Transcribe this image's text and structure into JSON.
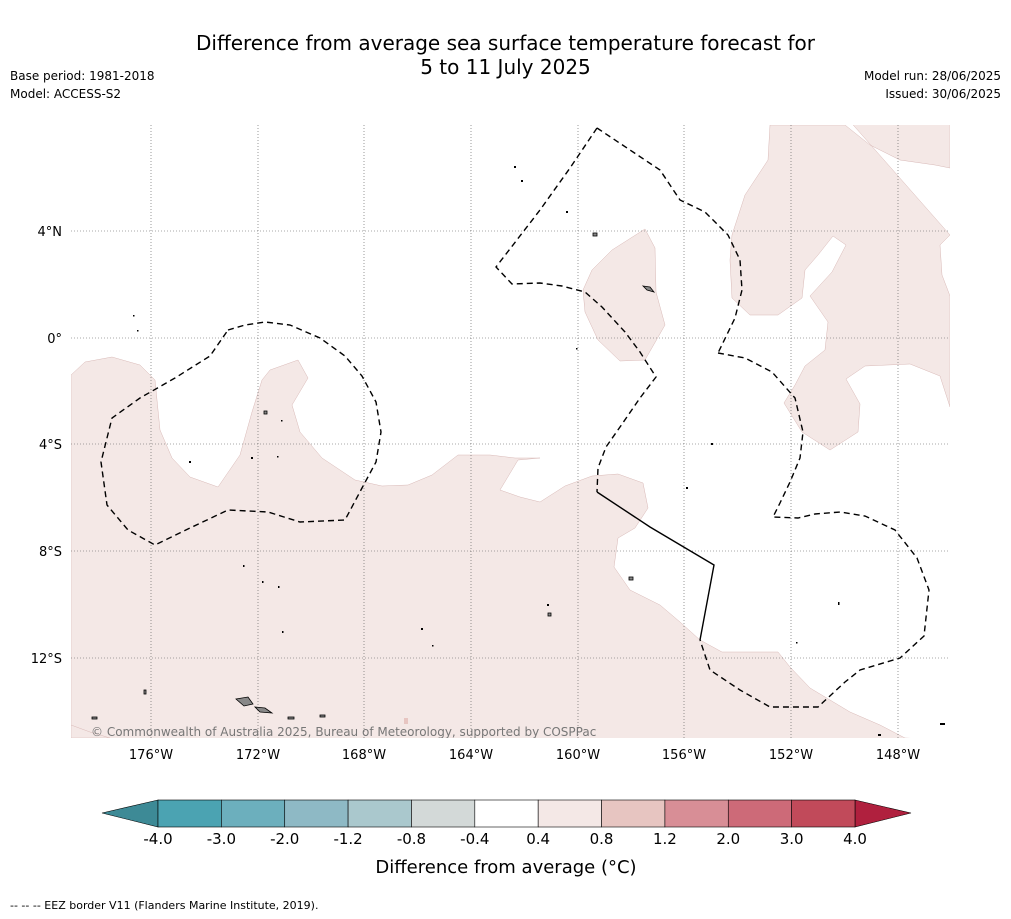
{
  "title_line1": "Difference from average sea surface temperature forecast for",
  "title_line2": "5 to 11 July 2025",
  "meta_left": [
    "Base period: 1981-2018",
    "Model: ACCESS-S2"
  ],
  "meta_right": [
    "Model run: 28/06/2025",
    "Issued: 30/06/2025"
  ],
  "credit": "© Commonwealth of Australia 2025, Bureau of Meteorology, supported by COSPPac",
  "lat_labels": [
    "4°N",
    "0°",
    "4°S",
    "8°S",
    "12°S"
  ],
  "lon_labels": [
    "176°W",
    "172°W",
    "168°W",
    "164°W",
    "160°W",
    "156°W",
    "152°W",
    "148°W"
  ],
  "colorbar": {
    "ticks": [
      "-4.0",
      "-3.0",
      "-2.0",
      "-1.2",
      "-0.8",
      "-0.4",
      "0.4",
      "0.8",
      "1.2",
      "2.0",
      "3.0",
      "4.0"
    ],
    "colors": [
      "#4ba3b2",
      "#6cafbd",
      "#8eb9c5",
      "#aac8cd",
      "#d3d9d8",
      "#ffffff",
      "#f4e8e6",
      "#e7c5c1",
      "#d88e96",
      "#cd6a78",
      "#c14a5a"
    ],
    "under_color": "#3d8a96",
    "over_color": "#b0203e",
    "label": "Difference from average (°C)"
  },
  "map_colors": {
    "anomaly_0_4_to_0_8": "#f4e8e6",
    "island": "#888888"
  },
  "footer": "--  --  -- EEZ border V11 (Flanders Marine Institute, 2019)."
}
